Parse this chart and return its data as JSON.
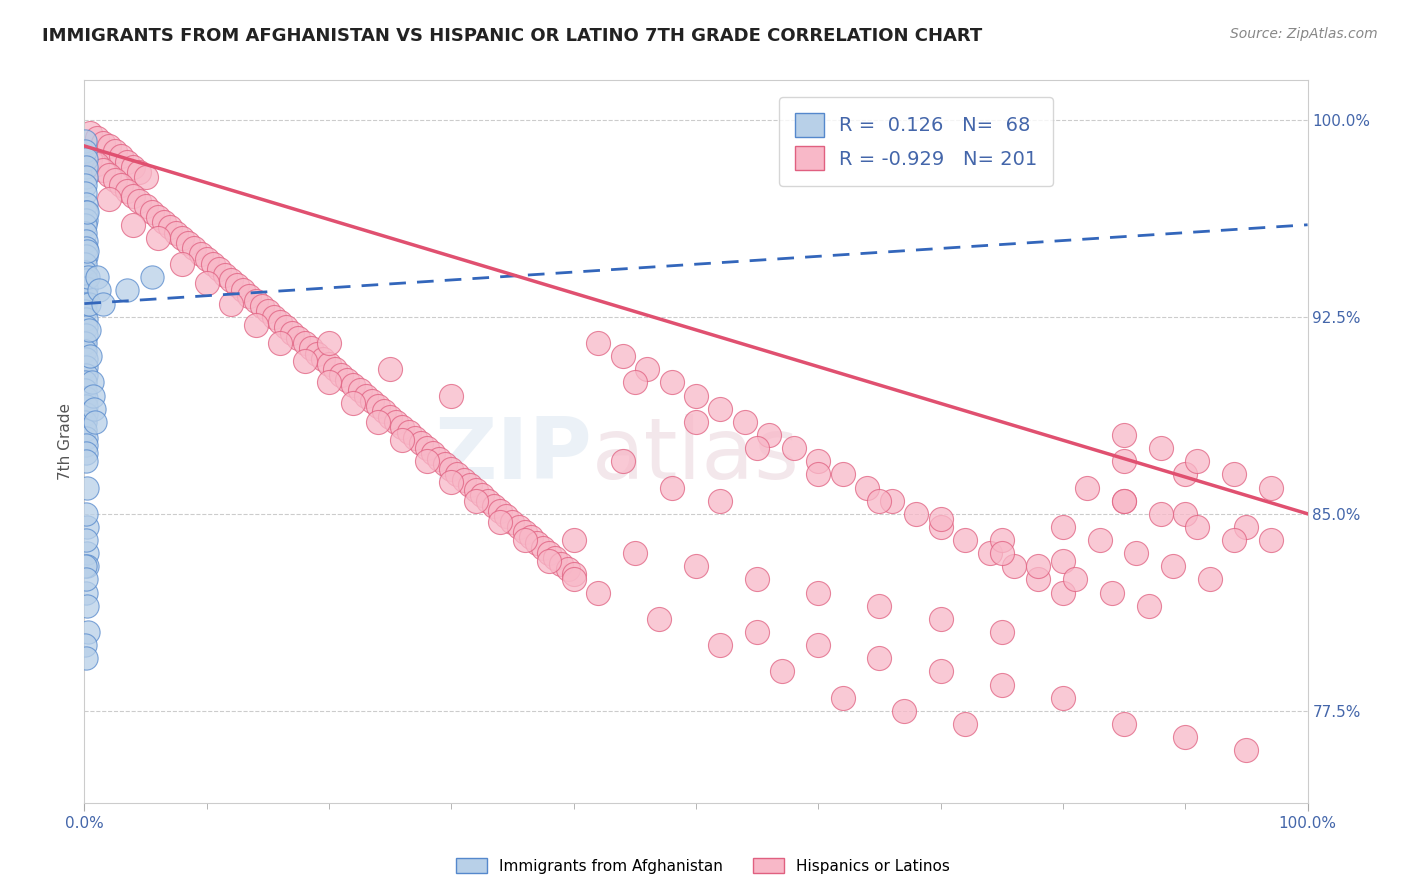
{
  "title": "IMMIGRANTS FROM AFGHANISTAN VS HISPANIC OR LATINO 7TH GRADE CORRELATION CHART",
  "source": "Source: ZipAtlas.com",
  "ylabel": "7th Grade",
  "right_yticks": [
    100.0,
    92.5,
    85.0,
    77.5
  ],
  "legend_labels": [
    "Immigrants from Afghanistan",
    "Hispanics or Latinos"
  ],
  "R_blue": 0.126,
  "N_blue": 68,
  "R_pink": -0.929,
  "N_pink": 201,
  "blue_color": "#b8d0e8",
  "blue_edge_color": "#5588cc",
  "pink_color": "#f8b8c8",
  "pink_edge_color": "#e06080",
  "blue_line_color": "#3366bb",
  "pink_line_color": "#e05070",
  "watermark_zip": "ZIP",
  "watermark_atlas": "atlas",
  "xlim": [
    0,
    100
  ],
  "ylim": [
    74,
    101.5
  ],
  "blue_scatter": [
    [
      0.05,
      99.2
    ],
    [
      0.08,
      98.8
    ],
    [
      0.1,
      98.5
    ],
    [
      0.12,
      98.2
    ],
    [
      0.15,
      97.8
    ],
    [
      0.05,
      97.5
    ],
    [
      0.08,
      97.2
    ],
    [
      0.1,
      96.8
    ],
    [
      0.12,
      96.5
    ],
    [
      0.15,
      96.2
    ],
    [
      0.05,
      96.0
    ],
    [
      0.08,
      95.7
    ],
    [
      0.1,
      95.4
    ],
    [
      0.12,
      95.1
    ],
    [
      0.15,
      94.8
    ],
    [
      0.05,
      94.5
    ],
    [
      0.08,
      94.2
    ],
    [
      0.1,
      93.9
    ],
    [
      0.12,
      93.6
    ],
    [
      0.15,
      93.3
    ],
    [
      0.05,
      93.0
    ],
    [
      0.08,
      92.7
    ],
    [
      0.1,
      92.4
    ],
    [
      0.12,
      92.1
    ],
    [
      0.15,
      91.8
    ],
    [
      0.05,
      91.5
    ],
    [
      0.08,
      91.2
    ],
    [
      0.1,
      90.9
    ],
    [
      0.12,
      90.6
    ],
    [
      0.15,
      90.3
    ],
    [
      0.05,
      90.0
    ],
    [
      0.08,
      89.7
    ],
    [
      0.1,
      89.4
    ],
    [
      0.12,
      89.1
    ],
    [
      0.15,
      88.8
    ],
    [
      0.05,
      88.5
    ],
    [
      0.08,
      88.2
    ],
    [
      0.1,
      87.9
    ],
    [
      0.12,
      87.6
    ],
    [
      0.15,
      87.3
    ],
    [
      0.2,
      96.5
    ],
    [
      0.25,
      95.0
    ],
    [
      0.3,
      94.0
    ],
    [
      0.35,
      93.0
    ],
    [
      0.4,
      92.0
    ],
    [
      0.5,
      91.0
    ],
    [
      0.6,
      90.0
    ],
    [
      0.7,
      89.5
    ],
    [
      0.8,
      89.0
    ],
    [
      0.9,
      88.5
    ],
    [
      1.0,
      94.0
    ],
    [
      1.2,
      93.5
    ],
    [
      1.5,
      93.0
    ],
    [
      0.2,
      86.0
    ],
    [
      0.25,
      84.5
    ],
    [
      0.2,
      83.5
    ],
    [
      0.25,
      83.0
    ],
    [
      0.15,
      82.0
    ],
    [
      0.2,
      81.5
    ],
    [
      0.3,
      80.5
    ],
    [
      0.15,
      87.0
    ],
    [
      3.5,
      93.5
    ],
    [
      5.5,
      94.0
    ],
    [
      0.1,
      85.0
    ],
    [
      0.15,
      84.0
    ],
    [
      0.08,
      83.0
    ],
    [
      0.1,
      82.5
    ],
    [
      0.08,
      80.0
    ],
    [
      0.1,
      79.5
    ]
  ],
  "pink_scatter": [
    [
      0.5,
      99.5
    ],
    [
      1.0,
      99.3
    ],
    [
      1.5,
      99.1
    ],
    [
      2.0,
      99.0
    ],
    [
      2.5,
      98.8
    ],
    [
      3.0,
      98.6
    ],
    [
      3.5,
      98.4
    ],
    [
      4.0,
      98.2
    ],
    [
      4.5,
      98.0
    ],
    [
      5.0,
      97.8
    ],
    [
      0.5,
      98.5
    ],
    [
      1.0,
      98.3
    ],
    [
      1.5,
      98.1
    ],
    [
      2.0,
      97.9
    ],
    [
      2.5,
      97.7
    ],
    [
      3.0,
      97.5
    ],
    [
      3.5,
      97.3
    ],
    [
      4.0,
      97.1
    ],
    [
      4.5,
      96.9
    ],
    [
      5.0,
      96.7
    ],
    [
      5.5,
      96.5
    ],
    [
      6.0,
      96.3
    ],
    [
      6.5,
      96.1
    ],
    [
      7.0,
      95.9
    ],
    [
      7.5,
      95.7
    ],
    [
      8.0,
      95.5
    ],
    [
      8.5,
      95.3
    ],
    [
      9.0,
      95.1
    ],
    [
      9.5,
      94.9
    ],
    [
      10.0,
      94.7
    ],
    [
      10.5,
      94.5
    ],
    [
      11.0,
      94.3
    ],
    [
      11.5,
      94.1
    ],
    [
      12.0,
      93.9
    ],
    [
      12.5,
      93.7
    ],
    [
      13.0,
      93.5
    ],
    [
      13.5,
      93.3
    ],
    [
      14.0,
      93.1
    ],
    [
      14.5,
      92.9
    ],
    [
      15.0,
      92.7
    ],
    [
      15.5,
      92.5
    ],
    [
      16.0,
      92.3
    ],
    [
      16.5,
      92.1
    ],
    [
      17.0,
      91.9
    ],
    [
      17.5,
      91.7
    ],
    [
      18.0,
      91.5
    ],
    [
      18.5,
      91.3
    ],
    [
      19.0,
      91.1
    ],
    [
      19.5,
      90.9
    ],
    [
      20.0,
      90.7
    ],
    [
      20.5,
      90.5
    ],
    [
      21.0,
      90.3
    ],
    [
      21.5,
      90.1
    ],
    [
      22.0,
      89.9
    ],
    [
      22.5,
      89.7
    ],
    [
      23.0,
      89.5
    ],
    [
      23.5,
      89.3
    ],
    [
      24.0,
      89.1
    ],
    [
      24.5,
      88.9
    ],
    [
      25.0,
      88.7
    ],
    [
      25.5,
      88.5
    ],
    [
      26.0,
      88.3
    ],
    [
      26.5,
      88.1
    ],
    [
      27.0,
      87.9
    ],
    [
      27.5,
      87.7
    ],
    [
      28.0,
      87.5
    ],
    [
      28.5,
      87.3
    ],
    [
      29.0,
      87.1
    ],
    [
      29.5,
      86.9
    ],
    [
      30.0,
      86.7
    ],
    [
      30.5,
      86.5
    ],
    [
      31.0,
      86.3
    ],
    [
      31.5,
      86.1
    ],
    [
      32.0,
      85.9
    ],
    [
      32.5,
      85.7
    ],
    [
      33.0,
      85.5
    ],
    [
      33.5,
      85.3
    ],
    [
      34.0,
      85.1
    ],
    [
      34.5,
      84.9
    ],
    [
      35.0,
      84.7
    ],
    [
      35.5,
      84.5
    ],
    [
      36.0,
      84.3
    ],
    [
      36.5,
      84.1
    ],
    [
      37.0,
      83.9
    ],
    [
      37.5,
      83.7
    ],
    [
      38.0,
      83.5
    ],
    [
      38.5,
      83.3
    ],
    [
      39.0,
      83.1
    ],
    [
      39.5,
      82.9
    ],
    [
      40.0,
      82.7
    ],
    [
      2.0,
      97.0
    ],
    [
      4.0,
      96.0
    ],
    [
      6.0,
      95.5
    ],
    [
      8.0,
      94.5
    ],
    [
      10.0,
      93.8
    ],
    [
      12.0,
      93.0
    ],
    [
      14.0,
      92.2
    ],
    [
      16.0,
      91.5
    ],
    [
      18.0,
      90.8
    ],
    [
      20.0,
      90.0
    ],
    [
      22.0,
      89.2
    ],
    [
      24.0,
      88.5
    ],
    [
      26.0,
      87.8
    ],
    [
      28.0,
      87.0
    ],
    [
      30.0,
      86.2
    ],
    [
      32.0,
      85.5
    ],
    [
      34.0,
      84.7
    ],
    [
      36.0,
      84.0
    ],
    [
      38.0,
      83.2
    ],
    [
      40.0,
      82.5
    ],
    [
      42.0,
      91.5
    ],
    [
      44.0,
      91.0
    ],
    [
      46.0,
      90.5
    ],
    [
      48.0,
      90.0
    ],
    [
      50.0,
      89.5
    ],
    [
      52.0,
      89.0
    ],
    [
      54.0,
      88.5
    ],
    [
      56.0,
      88.0
    ],
    [
      58.0,
      87.5
    ],
    [
      60.0,
      87.0
    ],
    [
      62.0,
      86.5
    ],
    [
      64.0,
      86.0
    ],
    [
      66.0,
      85.5
    ],
    [
      68.0,
      85.0
    ],
    [
      70.0,
      84.5
    ],
    [
      72.0,
      84.0
    ],
    [
      74.0,
      83.5
    ],
    [
      76.0,
      83.0
    ],
    [
      78.0,
      82.5
    ],
    [
      80.0,
      82.0
    ],
    [
      45.0,
      90.0
    ],
    [
      50.0,
      88.5
    ],
    [
      55.0,
      87.5
    ],
    [
      60.0,
      86.5
    ],
    [
      65.0,
      85.5
    ],
    [
      70.0,
      84.8
    ],
    [
      75.0,
      84.0
    ],
    [
      80.0,
      83.2
    ],
    [
      85.0,
      87.0
    ],
    [
      90.0,
      86.5
    ],
    [
      85.0,
      85.5
    ],
    [
      90.0,
      85.0
    ],
    [
      95.0,
      84.5
    ],
    [
      97.0,
      84.0
    ],
    [
      85.0,
      88.0
    ],
    [
      88.0,
      87.5
    ],
    [
      91.0,
      87.0
    ],
    [
      94.0,
      86.5
    ],
    [
      97.0,
      86.0
    ],
    [
      82.0,
      86.0
    ],
    [
      85.0,
      85.5
    ],
    [
      88.0,
      85.0
    ],
    [
      91.0,
      84.5
    ],
    [
      94.0,
      84.0
    ],
    [
      80.0,
      84.5
    ],
    [
      83.0,
      84.0
    ],
    [
      86.0,
      83.5
    ],
    [
      89.0,
      83.0
    ],
    [
      92.0,
      82.5
    ],
    [
      75.0,
      83.5
    ],
    [
      78.0,
      83.0
    ],
    [
      81.0,
      82.5
    ],
    [
      84.0,
      82.0
    ],
    [
      87.0,
      81.5
    ],
    [
      60.0,
      82.0
    ],
    [
      65.0,
      81.5
    ],
    [
      70.0,
      81.0
    ],
    [
      75.0,
      80.5
    ],
    [
      55.0,
      82.5
    ],
    [
      50.0,
      83.0
    ],
    [
      45.0,
      83.5
    ],
    [
      40.0,
      84.0
    ],
    [
      42.0,
      82.0
    ],
    [
      47.0,
      81.0
    ],
    [
      52.0,
      80.0
    ],
    [
      57.0,
      79.0
    ],
    [
      62.0,
      78.0
    ],
    [
      67.0,
      77.5
    ],
    [
      72.0,
      77.0
    ],
    [
      65.0,
      79.5
    ],
    [
      70.0,
      79.0
    ],
    [
      75.0,
      78.5
    ],
    [
      55.0,
      80.5
    ],
    [
      60.0,
      80.0
    ],
    [
      80.0,
      78.0
    ],
    [
      85.0,
      77.0
    ],
    [
      90.0,
      76.5
    ],
    [
      95.0,
      76.0
    ],
    [
      48.0,
      86.0
    ],
    [
      52.0,
      85.5
    ],
    [
      44.0,
      87.0
    ],
    [
      20.0,
      91.5
    ],
    [
      25.0,
      90.5
    ],
    [
      30.0,
      89.5
    ]
  ],
  "blue_trendline": [
    [
      0,
      93.0
    ],
    [
      100,
      96.0
    ]
  ],
  "pink_trendline": [
    [
      0,
      99.0
    ],
    [
      100,
      85.0
    ]
  ]
}
